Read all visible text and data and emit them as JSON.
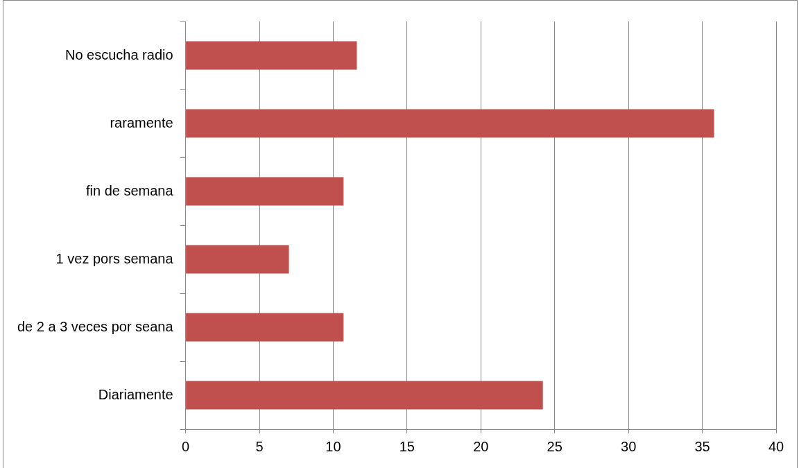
{
  "chart_data": {
    "type": "bar",
    "orientation": "horizontal",
    "categories": [
      "No escucha radio",
      "raramente",
      "fin de semana",
      "1 vez pors semana",
      "de 2 a 3 veces por seana",
      "Diariamente"
    ],
    "values": [
      11.6,
      35.8,
      10.7,
      7.0,
      10.7,
      24.2
    ],
    "color": "#c0504d",
    "xlim": [
      0,
      40
    ],
    "xticks": [
      0,
      5,
      10,
      15,
      20,
      25,
      30,
      35,
      40
    ],
    "grid": "x",
    "legend": false
  }
}
